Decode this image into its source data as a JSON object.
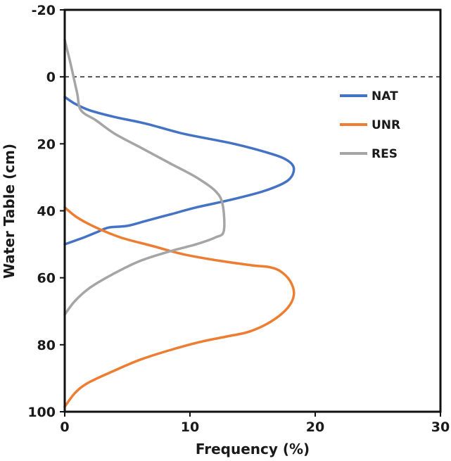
{
  "chart_data": {
    "type": "line",
    "orientation": "vertical-profile",
    "xlabel": "Frequency (%)",
    "ylabel": "Water Table (cm)",
    "xlim": [
      0,
      30
    ],
    "ylim": [
      -20,
      100
    ],
    "y_inverted": true,
    "xticks": [
      "0",
      "10",
      "20",
      "30"
    ],
    "yticks": [
      "-20",
      "0",
      "20",
      "40",
      "60",
      "80",
      "100"
    ],
    "grid": false,
    "legend_position": "top-right",
    "reference_line": {
      "y": 0,
      "style": "dashed"
    },
    "series": [
      {
        "name": "NAT",
        "color": "#4472C4",
        "points": [
          {
            "x": 0.0,
            "y": 6
          },
          {
            "x": 0.8,
            "y": 8
          },
          {
            "x": 2.0,
            "y": 10
          },
          {
            "x": 4.0,
            "y": 12
          },
          {
            "x": 6.5,
            "y": 14
          },
          {
            "x": 9.5,
            "y": 17
          },
          {
            "x": 13.5,
            "y": 20
          },
          {
            "x": 16.5,
            "y": 23
          },
          {
            "x": 17.8,
            "y": 25
          },
          {
            "x": 18.3,
            "y": 27.5
          },
          {
            "x": 17.8,
            "y": 31
          },
          {
            "x": 16.0,
            "y": 34
          },
          {
            "x": 13.5,
            "y": 36.5
          },
          {
            "x": 10.5,
            "y": 39
          },
          {
            "x": 8.5,
            "y": 41
          },
          {
            "x": 6.5,
            "y": 43
          },
          {
            "x": 5.0,
            "y": 44.5
          },
          {
            "x": 3.5,
            "y": 45
          },
          {
            "x": 2.5,
            "y": 46.5
          },
          {
            "x": 1.5,
            "y": 48
          },
          {
            "x": 0.0,
            "y": 50
          }
        ]
      },
      {
        "name": "UNR",
        "color": "#ED7D31",
        "points": [
          {
            "x": 0.0,
            "y": 39
          },
          {
            "x": 1.0,
            "y": 42
          },
          {
            "x": 2.5,
            "y": 45
          },
          {
            "x": 4.5,
            "y": 48
          },
          {
            "x": 7.0,
            "y": 50.5
          },
          {
            "x": 9.5,
            "y": 53
          },
          {
            "x": 12.5,
            "y": 55
          },
          {
            "x": 15.0,
            "y": 56.3
          },
          {
            "x": 16.3,
            "y": 56.8
          },
          {
            "x": 17.2,
            "y": 58
          },
          {
            "x": 18.0,
            "y": 61
          },
          {
            "x": 18.3,
            "y": 65
          },
          {
            "x": 17.8,
            "y": 69
          },
          {
            "x": 16.5,
            "y": 73
          },
          {
            "x": 14.8,
            "y": 76
          },
          {
            "x": 13.0,
            "y": 77.5
          },
          {
            "x": 11.0,
            "y": 79
          },
          {
            "x": 8.5,
            "y": 81.5
          },
          {
            "x": 6.0,
            "y": 84.5
          },
          {
            "x": 3.8,
            "y": 88
          },
          {
            "x": 1.8,
            "y": 91.5
          },
          {
            "x": 0.8,
            "y": 94.5
          },
          {
            "x": 0.0,
            "y": 98.5
          }
        ]
      },
      {
        "name": "RES",
        "color": "#A5A5A5",
        "points": [
          {
            "x": 0.0,
            "y": -11
          },
          {
            "x": 0.4,
            "y": -5
          },
          {
            "x": 0.7,
            "y": 0
          },
          {
            "x": 1.0,
            "y": 5
          },
          {
            "x": 1.3,
            "y": 10
          },
          {
            "x": 2.5,
            "y": 13
          },
          {
            "x": 4.0,
            "y": 17
          },
          {
            "x": 6.0,
            "y": 21
          },
          {
            "x": 8.5,
            "y": 26
          },
          {
            "x": 10.5,
            "y": 30
          },
          {
            "x": 12.0,
            "y": 34
          },
          {
            "x": 12.6,
            "y": 38
          },
          {
            "x": 12.7,
            "y": 46
          },
          {
            "x": 12.0,
            "y": 48
          },
          {
            "x": 10.5,
            "y": 50
          },
          {
            "x": 8.5,
            "y": 52
          },
          {
            "x": 6.0,
            "y": 55
          },
          {
            "x": 3.8,
            "y": 59
          },
          {
            "x": 2.0,
            "y": 63
          },
          {
            "x": 0.8,
            "y": 67
          },
          {
            "x": 0.0,
            "y": 71
          }
        ]
      }
    ]
  }
}
